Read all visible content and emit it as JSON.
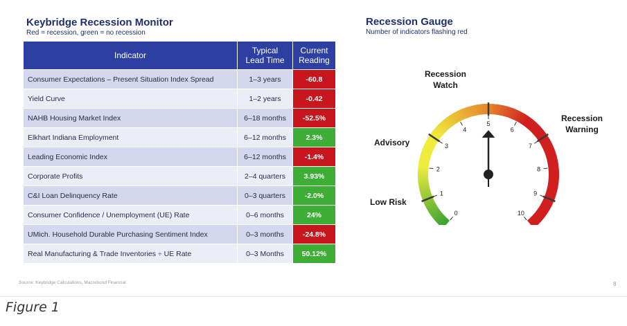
{
  "monitor": {
    "title": "Keybridge Recession Monitor",
    "subtitle": "Red = recession, green = no recession"
  },
  "gauge": {
    "title": "Recession Gauge",
    "subtitle": "Number of indicators flashing red",
    "zones": {
      "low_risk": "Low Risk",
      "advisory": "Advisory",
      "watch_line1": "Recession",
      "watch_line2": "Watch",
      "warning_line1": "Recession",
      "warning_line2": "Warning"
    },
    "colors": {
      "green": "#3aa335",
      "yellow": "#f0ec3c",
      "orange": "#e4832d",
      "red": "#d11f1f",
      "needle": "#222222"
    }
  },
  "table": {
    "headers": {
      "indicator": "Indicator",
      "lead_line1": "Typical",
      "lead_line2": "Lead Time",
      "reading_line1": "Current",
      "reading_line2": "Reading"
    },
    "colors": {
      "red": "#c8161e",
      "green": "#3fae36",
      "header": "#2d3fa0"
    },
    "rows": [
      {
        "indicator": "Consumer Expectations – Present Situation Index Spread",
        "lead_time": "1–3 years",
        "reading": "-60.8",
        "status": "red"
      },
      {
        "indicator": "Yield Curve",
        "lead_time": "1–2 years",
        "reading": "-0.42",
        "status": "red"
      },
      {
        "indicator": "NAHB Housing Market Index",
        "lead_time": "6–18 months",
        "reading": "-52.5%",
        "status": "red"
      },
      {
        "indicator": "Elkhart Indiana Employment",
        "lead_time": "6–12 months",
        "reading": "2.3%",
        "status": "green"
      },
      {
        "indicator": "Leading Economic Index",
        "lead_time": "6–12 months",
        "reading": "-1.4%",
        "status": "red"
      },
      {
        "indicator": "Corporate Profits",
        "lead_time": "2–4 quarters",
        "reading": "3.93%",
        "status": "green"
      },
      {
        "indicator": "C&I Loan Delinquency Rate",
        "lead_time": "0–3 quarters",
        "reading": "-2.0%",
        "status": "green"
      },
      {
        "indicator": "Consumer Confidence / Unemployment (UE) Rate",
        "lead_time": "0–6 months",
        "reading": "24%",
        "status": "green"
      },
      {
        "indicator": "UMich. Household Durable Purchasing Sentiment Index",
        "lead_time": "0–3 months",
        "reading": "-24.8%",
        "status": "red"
      },
      {
        "indicator": "Real Manufacturing & Trade Inventories ÷ UE Rate",
        "lead_time": "0–3 Months",
        "reading": "50.12%",
        "status": "green"
      }
    ]
  },
  "chart_data": {
    "type": "gauge",
    "title": "Recession Gauge",
    "subtitle": "Number of indicators flashing red",
    "min": 0,
    "max": 10,
    "value": 5,
    "ticks": [
      "0",
      "1",
      "2",
      "3",
      "4",
      "5",
      "6",
      "7",
      "8",
      "9",
      "10"
    ],
    "zones": [
      "Low Risk",
      "Advisory",
      "Recession Watch",
      "Recession Warning"
    ]
  },
  "footer": {
    "source": "Source: Keybridge Calculations, Macrobond Financial",
    "page": "8",
    "caption": "Figure 1"
  }
}
